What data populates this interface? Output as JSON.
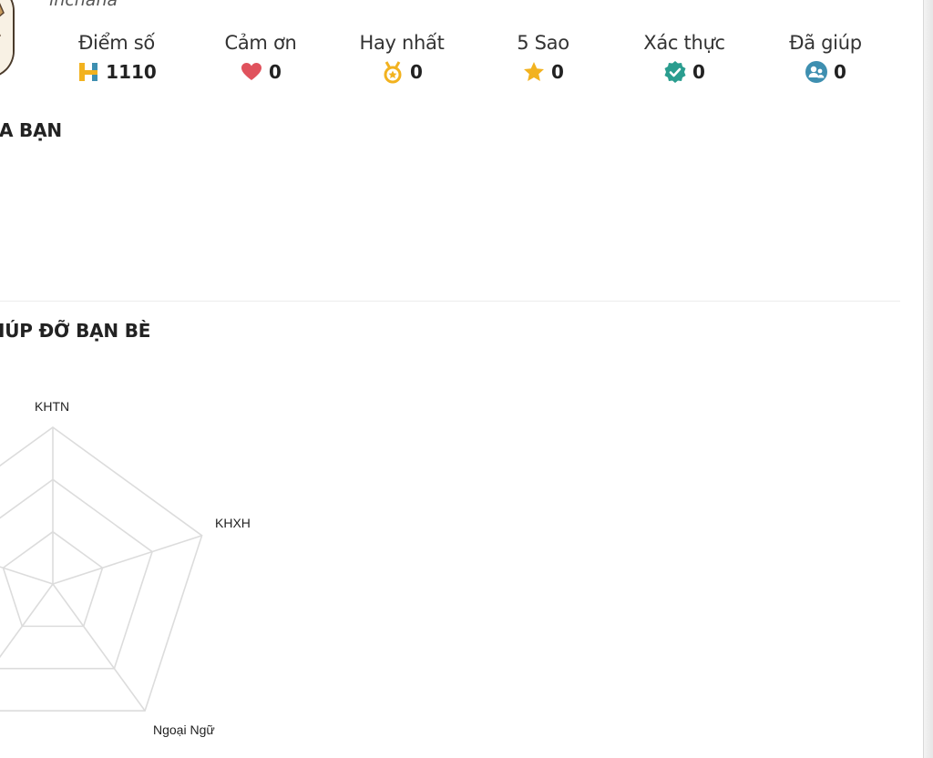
{
  "profile": {
    "username": "lnchana",
    "avatar_icon": "anime-character-avatar"
  },
  "stats": [
    {
      "key": "points",
      "label": "Điểm số",
      "value": "1110",
      "icon": "h-points-icon",
      "color": "#f2b21f"
    },
    {
      "key": "thanks",
      "label": "Cảm ơn",
      "value": "0",
      "icon": "heart-icon",
      "color": "#e0525d"
    },
    {
      "key": "best",
      "label": "Hay nhất",
      "value": "0",
      "icon": "medal-icon",
      "color": "#f2b21f"
    },
    {
      "key": "five_star",
      "label": "5 Sao",
      "value": "0",
      "icon": "star-icon",
      "color": "#f2b21f"
    },
    {
      "key": "verified",
      "label": "Xác thực",
      "value": "0",
      "icon": "verified-check-icon",
      "color": "#2a9d8f"
    },
    {
      "key": "helped",
      "label": "Đã giúp",
      "value": "0",
      "icon": "users-help-icon",
      "color": "#3e8fb0"
    }
  ],
  "sections": {
    "first_title": "A BẠN",
    "second_title": "IÚP ĐỠ BẠN BÈ"
  },
  "chart_data": {
    "type": "radar",
    "axes": [
      "KHTN",
      "KHXH",
      "Ngoại Ngữ"
    ],
    "values": [
      0,
      0,
      0
    ],
    "rings": 3,
    "grid_color": "#dcdcdc"
  }
}
